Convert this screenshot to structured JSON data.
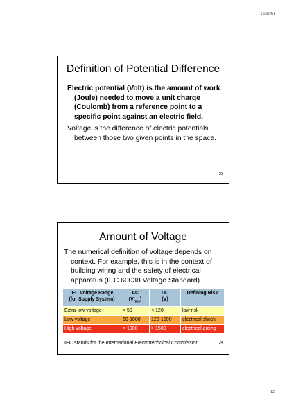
{
  "page": {
    "date": "25/01/61",
    "number": "12"
  },
  "slide1": {
    "title": "Definition of Potential Difference",
    "paragraph1": "Electric potential (Volt) is the amount of work (Joule) needed to move a unit charge (Coulomb) from a reference point to a specific point against an electric field.",
    "paragraph2": "Voltage is the difference of electric potentials between those two given points in the space.",
    "slide_number": "23"
  },
  "slide2": {
    "title": "Amount of Voltage",
    "paragraph": "The numerical definition of voltage depends on context.  For example, this is in the context of building wiring and the safety of electrical apparatus (IEC 60038 Voltage Standard).",
    "table": {
      "headers": {
        "range_line1": "IEC Voltage Range",
        "range_line2": "(for Supply System)",
        "ac_line1": "AC",
        "ac_line2_prefix": "(V",
        "ac_line2_sub": "rms",
        "ac_line2_suffix": ")",
        "dc_line1": "DC",
        "dc_line2": "(V)",
        "risk": "Defining Risk"
      },
      "rows": [
        {
          "range": "Extra-low voltage",
          "ac": "< 50",
          "dc": "< 120",
          "risk": "low risk"
        },
        {
          "range": "Low voltage",
          "ac": "50-1000",
          "dc": "120-1500",
          "risk": "electrical shock"
        },
        {
          "range": "High voltage",
          "ac": "> 1000",
          "dc": "> 1500",
          "risk": "electrical arcing"
        }
      ],
      "row_colors": [
        "#ffffa8",
        "#f8a640",
        "#ee2f1a"
      ],
      "header_color": "#a8c4d8"
    },
    "note_prefix": "IEC stands for ",
    "note_italic": "the International Electrotechnical Commission",
    "note_suffix": ".",
    "slide_number": "24"
  }
}
